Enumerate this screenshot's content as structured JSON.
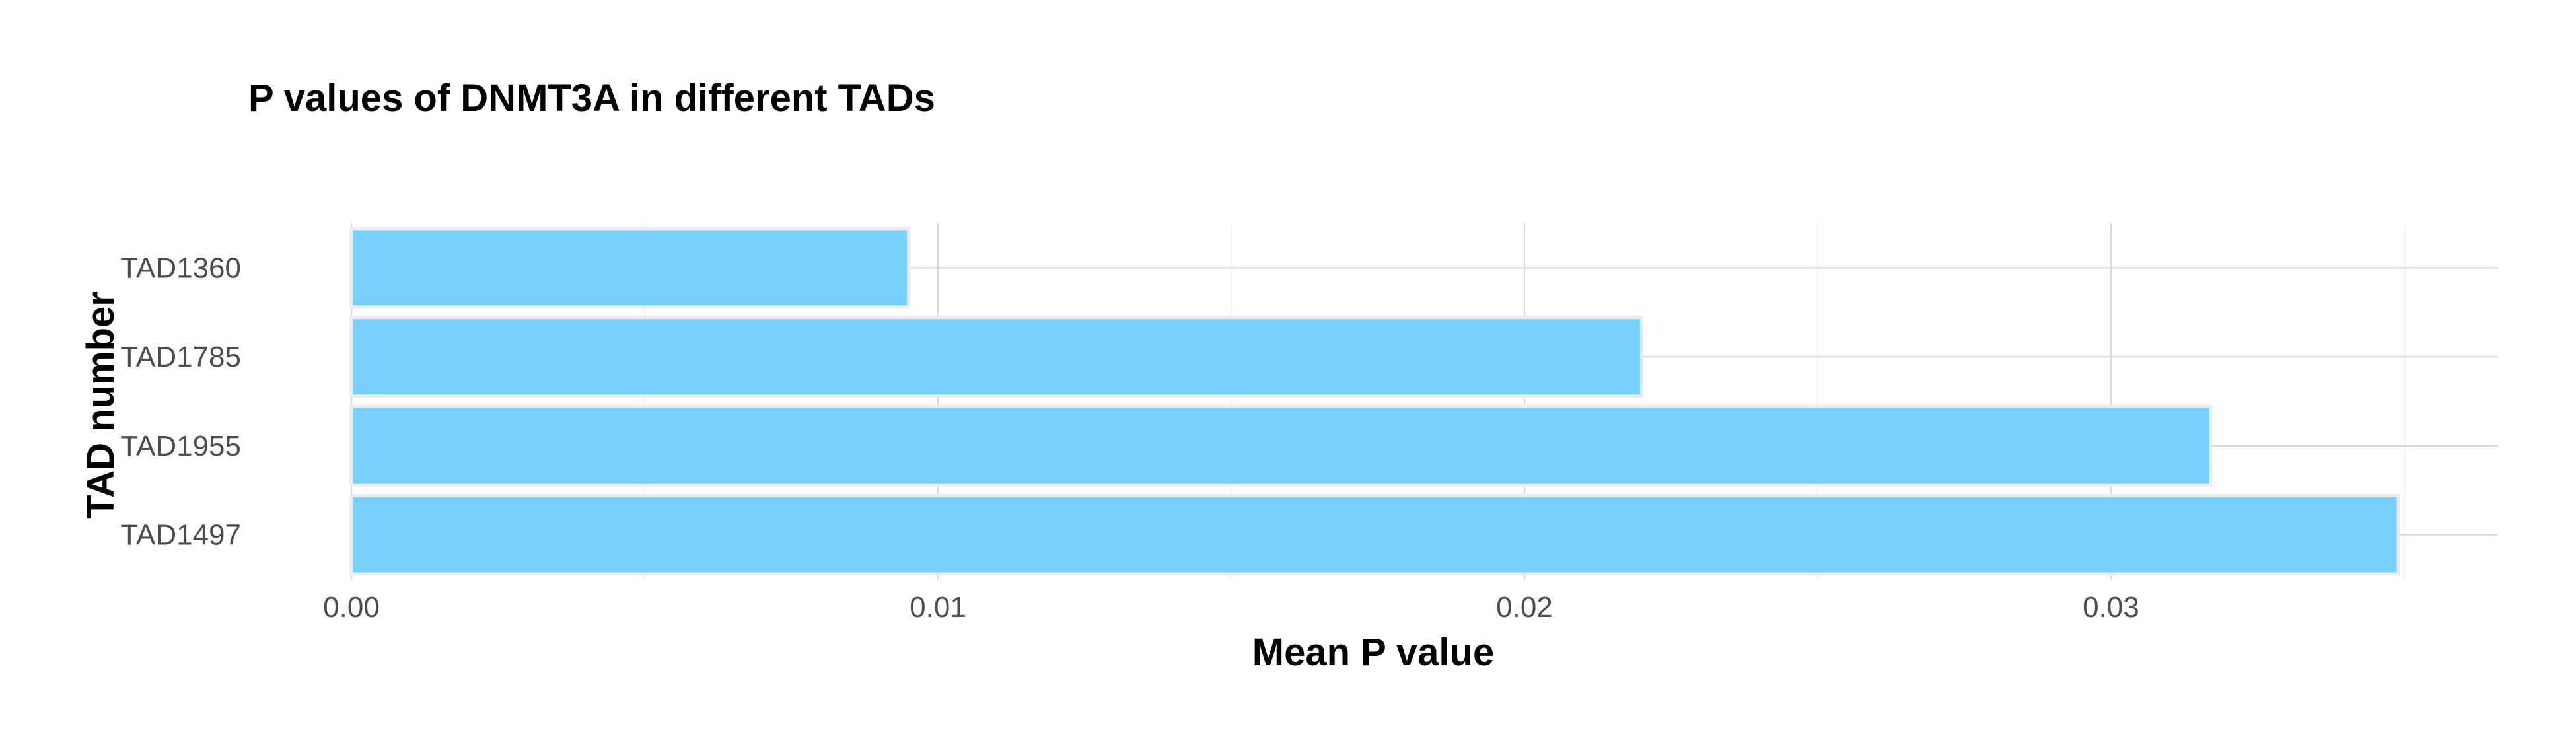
{
  "chart_data": {
    "type": "bar",
    "orientation": "horizontal",
    "title": "P values of DNMT3A in different TADs",
    "xlabel": "Mean P value",
    "ylabel": "TAD number",
    "categories": [
      "TAD1360",
      "TAD1785",
      "TAD1955",
      "TAD1497"
    ],
    "values": [
      0.0095,
      0.022,
      0.0317,
      0.0349
    ],
    "xlim": [
      0,
      0.0366
    ],
    "x_ticks": [
      0.0,
      0.01,
      0.02,
      0.03
    ],
    "x_tick_labels": [
      "0.00",
      "0.01",
      "0.02",
      "0.03"
    ],
    "x_minor_ticks": [
      0.005,
      0.015,
      0.025,
      0.035
    ],
    "bar_color": "#75CFFC",
    "grid": true,
    "legend": "none"
  }
}
